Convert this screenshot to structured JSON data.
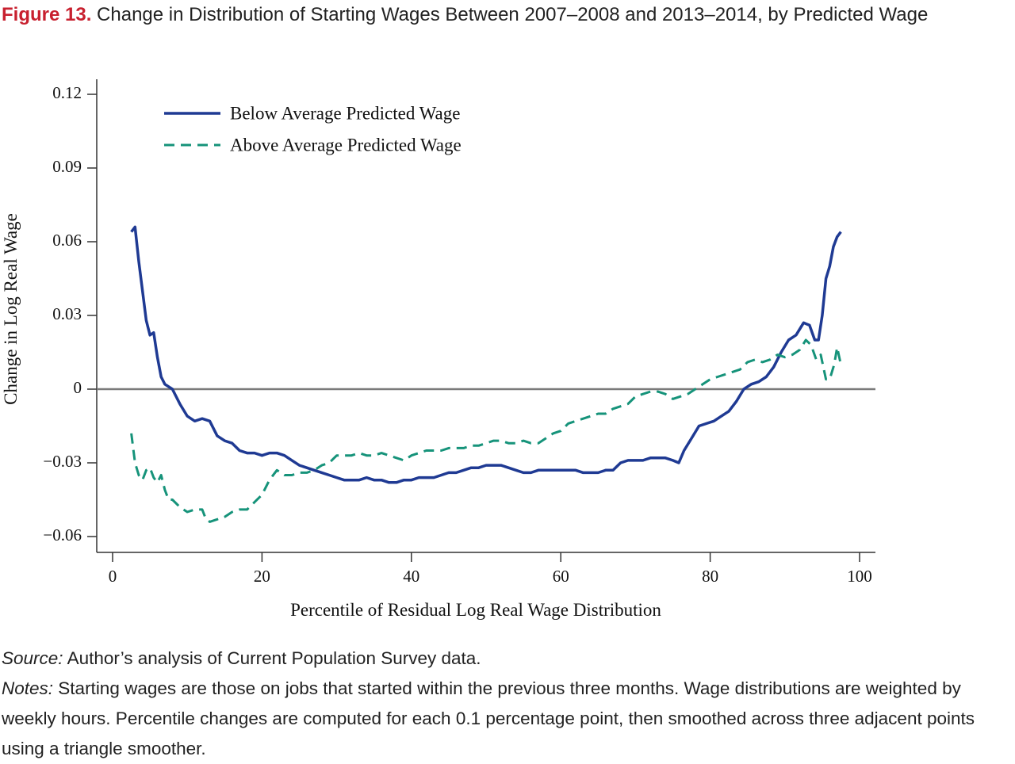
{
  "figure": {
    "label": "Figure 13.",
    "title": "Change in Distribution of Starting Wages Between 2007–2008 and 2013–2014, by Predicted Wage"
  },
  "footer": {
    "source_label": "Source:",
    "source_text": "Author’s analysis of Current Population Survey data.",
    "notes_label": "Notes:",
    "notes_text": "Starting wages are those on jobs that started within the previous three months. Wage distributions are weighted by weekly hours. Percentile changes are computed for each 0.1 percentage point, then smoothed across three adjacent points using a triangle smoother."
  },
  "chart_data": {
    "type": "line",
    "title": "",
    "xlabel": "Percentile of Residual Log Real Wage Distribution",
    "ylabel": "Change in Log Real Wage",
    "xlim": [
      0,
      100
    ],
    "ylim": [
      -0.06,
      0.12
    ],
    "x_ticks": [
      0,
      20,
      40,
      60,
      80,
      100
    ],
    "x_tick_labels": [
      "0",
      "20",
      "40",
      "60",
      "80",
      "100"
    ],
    "y_ticks": [
      -0.06,
      -0.03,
      0,
      0.03,
      0.06,
      0.09,
      0.12
    ],
    "y_tick_labels": [
      "−0.06",
      "−0.03",
      "0",
      "0.03",
      "0.06",
      "0.09",
      "0.12"
    ],
    "reference_line_y": 0,
    "grid": false,
    "legend_position": "top-left",
    "series": [
      {
        "name": "Below Average Predicted Wage",
        "color": "#1f3a93",
        "style": "solid",
        "points": [
          [
            2.5,
            0.064
          ],
          [
            3,
            0.066
          ],
          [
            3.5,
            0.052
          ],
          [
            4,
            0.04
          ],
          [
            4.5,
            0.028
          ],
          [
            5,
            0.022
          ],
          [
            5.5,
            0.023
          ],
          [
            6,
            0.013
          ],
          [
            6.5,
            0.005
          ],
          [
            7,
            0.002
          ],
          [
            8,
            0.0
          ],
          [
            9,
            -0.006
          ],
          [
            10,
            -0.011
          ],
          [
            11,
            -0.013
          ],
          [
            12,
            -0.012
          ],
          [
            13,
            -0.013
          ],
          [
            14,
            -0.019
          ],
          [
            15,
            -0.021
          ],
          [
            16,
            -0.022
          ],
          [
            17,
            -0.025
          ],
          [
            18,
            -0.026
          ],
          [
            19,
            -0.026
          ],
          [
            20,
            -0.027
          ],
          [
            21,
            -0.026
          ],
          [
            22,
            -0.026
          ],
          [
            23,
            -0.027
          ],
          [
            24,
            -0.029
          ],
          [
            25,
            -0.031
          ],
          [
            26,
            -0.032
          ],
          [
            27,
            -0.033
          ],
          [
            28,
            -0.034
          ],
          [
            29,
            -0.035
          ],
          [
            30,
            -0.036
          ],
          [
            31,
            -0.037
          ],
          [
            32,
            -0.037
          ],
          [
            33,
            -0.037
          ],
          [
            34,
            -0.036
          ],
          [
            35,
            -0.037
          ],
          [
            36,
            -0.037
          ],
          [
            37,
            -0.038
          ],
          [
            38,
            -0.038
          ],
          [
            39,
            -0.037
          ],
          [
            40,
            -0.037
          ],
          [
            41,
            -0.036
          ],
          [
            42,
            -0.036
          ],
          [
            43,
            -0.036
          ],
          [
            44,
            -0.035
          ],
          [
            45,
            -0.034
          ],
          [
            46,
            -0.034
          ],
          [
            47,
            -0.033
          ],
          [
            48,
            -0.032
          ],
          [
            49,
            -0.032
          ],
          [
            50,
            -0.031
          ],
          [
            51,
            -0.031
          ],
          [
            52,
            -0.031
          ],
          [
            53,
            -0.032
          ],
          [
            54,
            -0.033
          ],
          [
            55,
            -0.034
          ],
          [
            56,
            -0.034
          ],
          [
            57,
            -0.033
          ],
          [
            58,
            -0.033
          ],
          [
            59,
            -0.033
          ],
          [
            60,
            -0.033
          ],
          [
            61,
            -0.033
          ],
          [
            62,
            -0.033
          ],
          [
            63,
            -0.034
          ],
          [
            64,
            -0.034
          ],
          [
            65,
            -0.034
          ],
          [
            66,
            -0.033
          ],
          [
            67,
            -0.033
          ],
          [
            68,
            -0.03
          ],
          [
            69,
            -0.029
          ],
          [
            70,
            -0.029
          ],
          [
            71,
            -0.029
          ],
          [
            72,
            -0.028
          ],
          [
            73,
            -0.028
          ],
          [
            74,
            -0.028
          ],
          [
            75,
            -0.029
          ],
          [
            75.8,
            -0.03
          ],
          [
            76.5,
            -0.025
          ],
          [
            77.5,
            -0.02
          ],
          [
            78.5,
            -0.015
          ],
          [
            79.5,
            -0.014
          ],
          [
            80.5,
            -0.013
          ],
          [
            81.5,
            -0.011
          ],
          [
            82.5,
            -0.009
          ],
          [
            83.5,
            -0.005
          ],
          [
            84.5,
            0.0
          ],
          [
            85.5,
            0.002
          ],
          [
            86.5,
            0.003
          ],
          [
            87.5,
            0.005
          ],
          [
            88.5,
            0.009
          ],
          [
            89.5,
            0.015
          ],
          [
            90.5,
            0.02
          ],
          [
            91.5,
            0.022
          ],
          [
            92.5,
            0.027
          ],
          [
            93.3,
            0.026
          ],
          [
            94,
            0.02
          ],
          [
            94.5,
            0.02
          ],
          [
            95,
            0.03
          ],
          [
            95.5,
            0.045
          ],
          [
            96,
            0.05
          ],
          [
            96.5,
            0.058
          ],
          [
            97,
            0.062
          ],
          [
            97.5,
            0.064
          ]
        ]
      },
      {
        "name": "Above Average Predicted Wage",
        "color": "#16937a",
        "style": "dashed",
        "points": [
          [
            2.5,
            -0.018
          ],
          [
            3,
            -0.03
          ],
          [
            3.5,
            -0.035
          ],
          [
            4,
            -0.037
          ],
          [
            4.5,
            -0.033
          ],
          [
            5,
            -0.032
          ],
          [
            5.5,
            -0.036
          ],
          [
            6,
            -0.038
          ],
          [
            6.5,
            -0.035
          ],
          [
            7,
            -0.041
          ],
          [
            7.5,
            -0.045
          ],
          [
            8,
            -0.045
          ],
          [
            9,
            -0.048
          ],
          [
            10,
            -0.05
          ],
          [
            11,
            -0.049
          ],
          [
            12,
            -0.049
          ],
          [
            12.5,
            -0.053
          ],
          [
            13,
            -0.054
          ],
          [
            14,
            -0.053
          ],
          [
            15,
            -0.052
          ],
          [
            16,
            -0.05
          ],
          [
            17,
            -0.049
          ],
          [
            18,
            -0.049
          ],
          [
            19,
            -0.046
          ],
          [
            20,
            -0.043
          ],
          [
            21,
            -0.037
          ],
          [
            22,
            -0.033
          ],
          [
            23,
            -0.035
          ],
          [
            24,
            -0.035
          ],
          [
            25,
            -0.034
          ],
          [
            26,
            -0.034
          ],
          [
            27,
            -0.033
          ],
          [
            28,
            -0.031
          ],
          [
            29,
            -0.03
          ],
          [
            30,
            -0.027
          ],
          [
            31,
            -0.027
          ],
          [
            32,
            -0.027
          ],
          [
            33,
            -0.026
          ],
          [
            34,
            -0.027
          ],
          [
            35,
            -0.027
          ],
          [
            36,
            -0.026
          ],
          [
            37,
            -0.027
          ],
          [
            38,
            -0.028
          ],
          [
            39,
            -0.029
          ],
          [
            40,
            -0.027
          ],
          [
            41,
            -0.026
          ],
          [
            42,
            -0.025
          ],
          [
            43,
            -0.025
          ],
          [
            44,
            -0.025
          ],
          [
            45,
            -0.024
          ],
          [
            46,
            -0.024
          ],
          [
            47,
            -0.024
          ],
          [
            48,
            -0.023
          ],
          [
            49,
            -0.023
          ],
          [
            50,
            -0.022
          ],
          [
            51,
            -0.021
          ],
          [
            52,
            -0.021
          ],
          [
            53,
            -0.022
          ],
          [
            54,
            -0.022
          ],
          [
            55,
            -0.021
          ],
          [
            56,
            -0.022
          ],
          [
            57,
            -0.022
          ],
          [
            58,
            -0.02
          ],
          [
            59,
            -0.018
          ],
          [
            60,
            -0.017
          ],
          [
            61,
            -0.014
          ],
          [
            62,
            -0.013
          ],
          [
            63,
            -0.012
          ],
          [
            64,
            -0.011
          ],
          [
            65,
            -0.01
          ],
          [
            66,
            -0.01
          ],
          [
            67,
            -0.008
          ],
          [
            68,
            -0.007
          ],
          [
            69,
            -0.006
          ],
          [
            70,
            -0.003
          ],
          [
            71,
            -0.002
          ],
          [
            72,
            -0.001
          ],
          [
            73,
            -0.001
          ],
          [
            74,
            -0.002
          ],
          [
            75,
            -0.004
          ],
          [
            76,
            -0.003
          ],
          [
            77,
            -0.002
          ],
          [
            78,
            0.0
          ],
          [
            79,
            0.002
          ],
          [
            80,
            0.004
          ],
          [
            81,
            0.005
          ],
          [
            82,
            0.006
          ],
          [
            83,
            0.007
          ],
          [
            84,
            0.008
          ],
          [
            85,
            0.011
          ],
          [
            86,
            0.012
          ],
          [
            87,
            0.011
          ],
          [
            88,
            0.012
          ],
          [
            89,
            0.014
          ],
          [
            90,
            0.013
          ],
          [
            91,
            0.014
          ],
          [
            92,
            0.016
          ],
          [
            92.8,
            0.02
          ],
          [
            93.5,
            0.018
          ],
          [
            94.2,
            0.012
          ],
          [
            94.8,
            0.014
          ],
          [
            95.5,
            0.004
          ],
          [
            96,
            0.004
          ],
          [
            96.6,
            0.01
          ],
          [
            97,
            0.017
          ],
          [
            97.5,
            0.01
          ]
        ]
      }
    ]
  }
}
